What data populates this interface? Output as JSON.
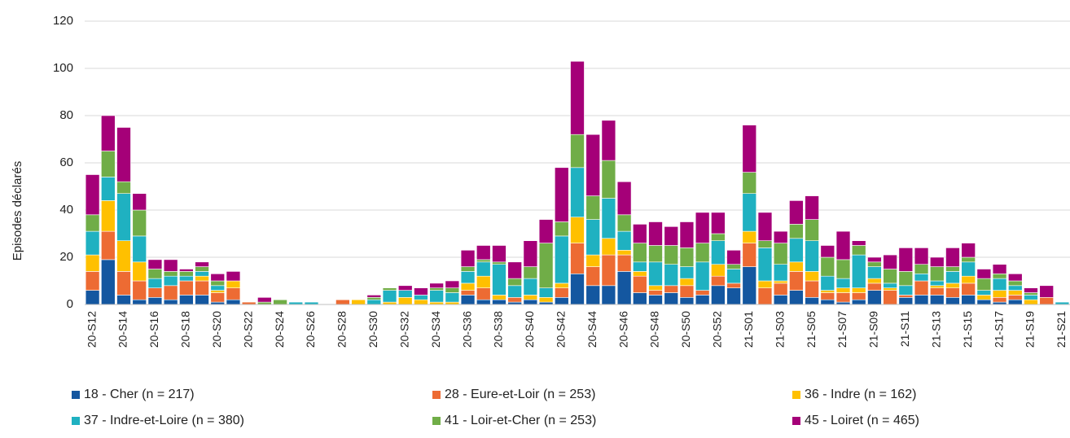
{
  "chart_data": {
    "type": "bar",
    "stacked": true,
    "ylabel": "Episodes déclarés",
    "ylim": [
      0,
      120
    ],
    "yticks": [
      0,
      20,
      40,
      60,
      80,
      100,
      120
    ],
    "grid": "horizontal",
    "legend_position": "bottom",
    "categories": [
      "20-S12",
      "20-S13",
      "20-S14",
      "20-S15",
      "20-S16",
      "20-S17",
      "20-S18",
      "20-S19",
      "20-S20",
      "20-S21",
      "20-S22",
      "20-S23",
      "20-S24",
      "20-S25",
      "20-S26",
      "20-S27",
      "20-S28",
      "20-S29",
      "20-S30",
      "20-S31",
      "20-S32",
      "20-S33",
      "20-S34",
      "20-S35",
      "20-S36",
      "20-S37",
      "20-S38",
      "20-S39",
      "20-S40",
      "20-S41",
      "20-S42",
      "20-S43",
      "20-S44",
      "20-S45",
      "20-S46",
      "20-S47",
      "20-S48",
      "20-S49",
      "20-S50",
      "20-S51",
      "20-S52",
      "20-S53",
      "21-S01",
      "21-S02",
      "21-S03",
      "21-S04",
      "21-S05",
      "21-S06",
      "21-S07",
      "21-S08",
      "21-S09",
      "21-S10",
      "21-S11",
      "21-S12",
      "21-S13",
      "21-S14",
      "21-S15",
      "21-S16",
      "21-S17",
      "21-S18",
      "21-S19",
      "21-S20",
      "21-S21"
    ],
    "xtick_labels": [
      "20-S12",
      "",
      "20-S14",
      "",
      "20-S16",
      "",
      "20-S18",
      "",
      "20-S20",
      "",
      "20-S22",
      "",
      "20-S24",
      "",
      "20-S26",
      "",
      "20-S28",
      "",
      "20-S30",
      "",
      "20-S32",
      "",
      "20-S34",
      "",
      "20-S36",
      "",
      "20-S38",
      "",
      "20-S40",
      "",
      "20-S42",
      "",
      "20-S44",
      "",
      "20-S46",
      "",
      "20-S48",
      "",
      "20-S50",
      "",
      "20-S52",
      "",
      "21-S01",
      "",
      "21-S03",
      "",
      "21-S05",
      "",
      "21-S07",
      "",
      "21-S09",
      "",
      "21-S11",
      "",
      "21-S13",
      "",
      "21-S15",
      "",
      "21-S17",
      "",
      "21-S19",
      "",
      "21-S21"
    ],
    "series": [
      {
        "name": "18 - Cher (n = 217)",
        "color": "#1457a0",
        "values": [
          6,
          19,
          4,
          2,
          3,
          2,
          4,
          4,
          1,
          2,
          0,
          0,
          0,
          0,
          0,
          0,
          0,
          0,
          0,
          0,
          0,
          0,
          0,
          0,
          4,
          2,
          2,
          1,
          2,
          1,
          3,
          13,
          8,
          8,
          14,
          5,
          4,
          5,
          3,
          4,
          8,
          7,
          16,
          0,
          4,
          6,
          3,
          2,
          1,
          2,
          6,
          0,
          3,
          4,
          4,
          3,
          4,
          2,
          1,
          2,
          0,
          0,
          0
        ]
      },
      {
        "name": "28 - Eure-et-Loir (n = 253)",
        "color": "#ed6b33",
        "values": [
          8,
          12,
          10,
          8,
          4,
          6,
          6,
          6,
          4,
          5,
          1,
          0,
          0,
          0,
          0,
          0,
          2,
          0,
          0,
          0,
          0,
          0,
          0,
          0,
          2,
          5,
          0,
          2,
          0,
          0,
          4,
          13,
          8,
          13,
          7,
          7,
          2,
          3,
          5,
          2,
          4,
          2,
          10,
          7,
          5,
          8,
          7,
          3,
          4,
          3,
          3,
          6,
          1,
          6,
          3,
          4,
          5,
          0,
          2,
          2,
          0,
          3,
          0
        ]
      },
      {
        "name": "36 - Indre (n = 162)",
        "color": "#ffc000",
        "values": [
          7,
          13,
          13,
          8,
          0,
          0,
          0,
          2,
          1,
          3,
          0,
          0,
          0,
          0,
          0,
          0,
          0,
          2,
          0,
          1,
          3,
          2,
          1,
          1,
          3,
          5,
          2,
          0,
          2,
          2,
          2,
          11,
          5,
          7,
          2,
          2,
          2,
          0,
          3,
          0,
          5,
          0,
          5,
          3,
          1,
          4,
          4,
          1,
          2,
          2,
          2,
          1,
          0,
          0,
          1,
          2,
          3,
          2,
          3,
          2,
          2,
          0,
          0
        ]
      },
      {
        "name": "37 - Indre-et-Loire (n = 380)",
        "color": "#1fb1c1",
        "values": [
          10,
          10,
          20,
          11,
          4,
          4,
          2,
          2,
          2,
          0,
          0,
          0,
          0,
          1,
          1,
          0,
          0,
          0,
          2,
          5,
          3,
          2,
          5,
          4,
          5,
          6,
          13,
          5,
          7,
          4,
          20,
          21,
          15,
          17,
          8,
          4,
          10,
          9,
          5,
          12,
          10,
          6,
          16,
          14,
          7,
          10,
          13,
          6,
          4,
          14,
          5,
          2,
          4,
          3,
          2,
          5,
          6,
          2,
          5,
          2,
          2,
          0,
          1
        ]
      },
      {
        "name": "41 - Loir-et-Cher (n = 253)",
        "color": "#70ad47",
        "values": [
          7,
          11,
          5,
          11,
          4,
          2,
          2,
          2,
          2,
          0,
          0,
          1,
          2,
          0,
          0,
          0,
          0,
          0,
          1,
          1,
          0,
          0,
          1,
          2,
          2,
          1,
          1,
          3,
          5,
          19,
          6,
          14,
          10,
          16,
          7,
          8,
          7,
          8,
          8,
          8,
          3,
          2,
          9,
          3,
          9,
          6,
          9,
          8,
          8,
          4,
          2,
          6,
          6,
          4,
          6,
          2,
          2,
          5,
          2,
          2,
          1,
          0,
          0
        ]
      },
      {
        "name": "45 - Loiret (n = 465)",
        "color": "#a50078",
        "values": [
          17,
          15,
          23,
          7,
          4,
          5,
          1,
          2,
          3,
          4,
          0,
          2,
          0,
          0,
          0,
          0,
          0,
          0,
          1,
          0,
          2,
          3,
          2,
          3,
          7,
          6,
          7,
          7,
          11,
          10,
          23,
          31,
          26,
          17,
          14,
          8,
          10,
          8,
          11,
          13,
          9,
          6,
          20,
          12,
          5,
          10,
          10,
          5,
          12,
          2,
          2,
          6,
          10,
          7,
          4,
          8,
          6,
          4,
          4,
          3,
          2,
          5,
          0
        ]
      }
    ]
  }
}
